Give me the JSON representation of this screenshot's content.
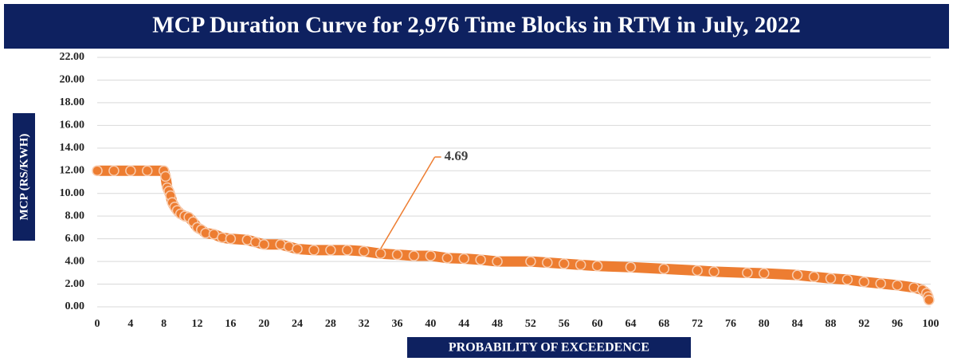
{
  "chart_data": {
    "type": "scatter",
    "title": "MCP Duration Curve for 2,976 Time Blocks in RTM in July, 2022",
    "x_label": "PROBABILITY OF EXCEEDENCE",
    "y_label": "MCP (RS/KWH)",
    "xlim": [
      0,
      100
    ],
    "ylim": [
      0,
      22
    ],
    "xticks": [
      0,
      4,
      8,
      12,
      16,
      20,
      24,
      28,
      32,
      36,
      40,
      44,
      48,
      52,
      56,
      60,
      64,
      68,
      72,
      76,
      80,
      84,
      88,
      92,
      96,
      100
    ],
    "yticks": [
      {
        "value": 0,
        "label": "0.00"
      },
      {
        "value": 2,
        "label": "2.00"
      },
      {
        "value": 4,
        "label": "4.00"
      },
      {
        "value": 6,
        "label": "6.00"
      },
      {
        "value": 8,
        "label": "8.00"
      },
      {
        "value": 10,
        "label": "10.00"
      },
      {
        "value": 12,
        "label": "12.00"
      },
      {
        "value": 14,
        "label": "14.00"
      },
      {
        "value": 16,
        "label": "16.00"
      },
      {
        "value": 18,
        "label": "18.00"
      },
      {
        "value": 20,
        "label": "20.00"
      },
      {
        "value": 22,
        "label": "22.00"
      }
    ],
    "grid": true,
    "series": [
      {
        "name": "MCP",
        "color": "#ed7d31",
        "x": [
          0,
          2,
          4,
          6,
          8,
          8.2,
          8.4,
          8.6,
          8.8,
          9,
          9.3,
          9.6,
          10,
          10.5,
          11,
          11.5,
          12,
          12.5,
          13,
          14,
          15,
          16,
          18,
          19,
          20,
          22,
          23,
          24,
          26,
          28,
          30,
          32,
          34,
          36,
          38,
          40,
          42,
          44,
          46,
          48,
          52,
          54,
          56,
          58,
          60,
          64,
          68,
          72,
          74,
          78,
          80,
          84,
          86,
          88,
          90,
          92,
          94,
          96,
          98,
          99,
          99.5,
          99.7,
          99.8
        ],
        "values": [
          12,
          12,
          12,
          12,
          12,
          11.5,
          10.5,
          10.2,
          9.8,
          9.2,
          8.8,
          8.5,
          8.2,
          8.0,
          7.9,
          7.5,
          7.0,
          6.8,
          6.5,
          6.4,
          6.1,
          6.0,
          5.9,
          5.7,
          5.5,
          5.5,
          5.3,
          5.1,
          5.0,
          5.0,
          5.0,
          4.9,
          4.69,
          4.6,
          4.5,
          4.5,
          4.3,
          4.25,
          4.15,
          4.0,
          4.0,
          3.9,
          3.8,
          3.7,
          3.6,
          3.5,
          3.35,
          3.2,
          3.1,
          3.0,
          2.95,
          2.8,
          2.65,
          2.5,
          2.4,
          2.2,
          2.05,
          1.9,
          1.7,
          1.5,
          1.2,
          0.9,
          0.6
        ]
      }
    ],
    "annotation": {
      "x": 34,
      "value": 4.69
    }
  }
}
